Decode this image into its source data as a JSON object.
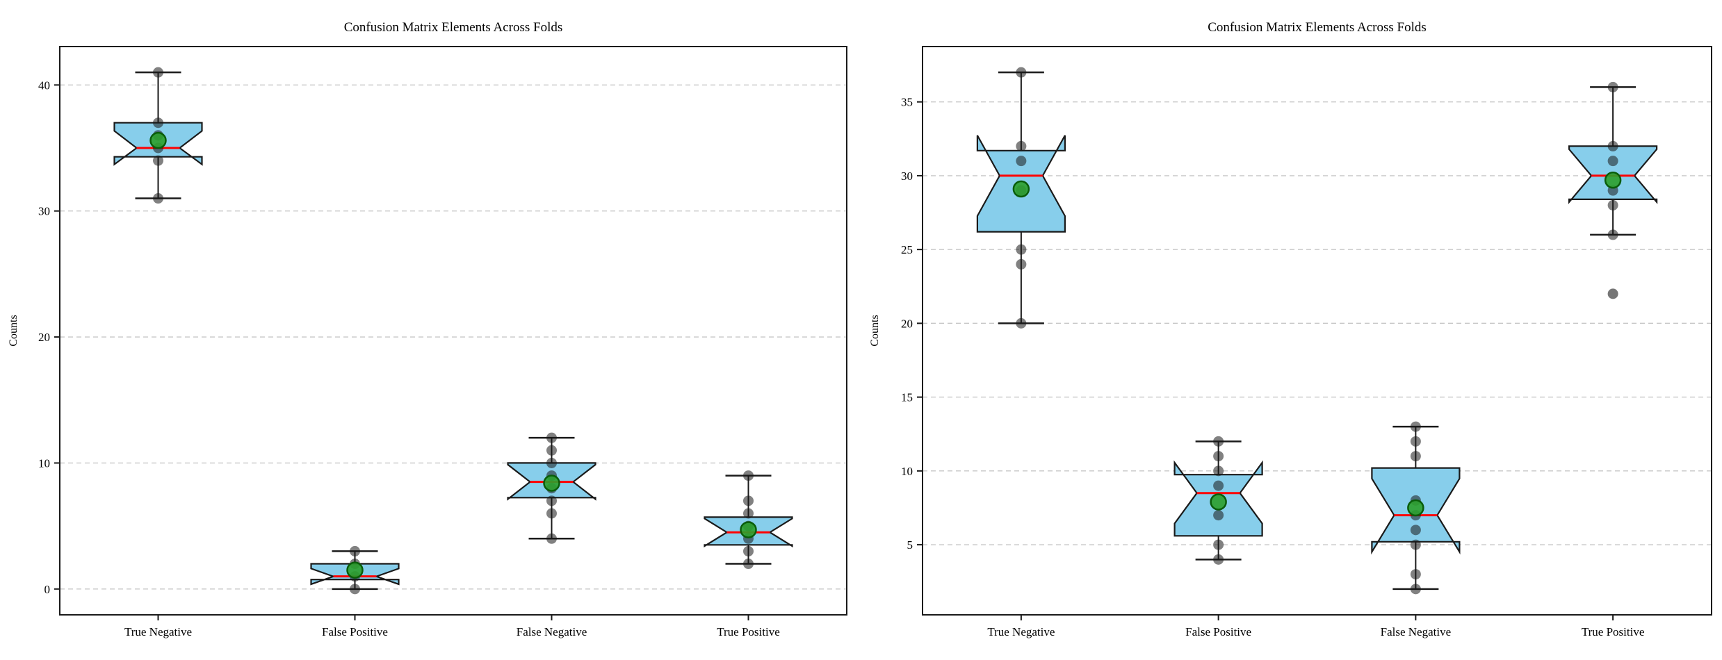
{
  "figure": {
    "background": "#ffffff",
    "panels": [
      "left-boxplot",
      "right-boxplot"
    ]
  },
  "style": {
    "box_fill": "#87CEEB",
    "box_edge": "#1a1a1a",
    "median_color": "#ff0000",
    "mean_fill": "#2ca02c",
    "mean_edge": "#0a5d0a",
    "point_color": "#1a1a1a",
    "grid_color": "#c7c7c7",
    "axis_color": "#1a1a1a"
  },
  "chart_data": [
    {
      "type": "box",
      "panel": "left",
      "title": "Confusion Matrix Elements Across Folds",
      "xlabel": "",
      "ylabel": "Counts",
      "categories": [
        "True Negative",
        "False Positive",
        "False Negative",
        "True Positive"
      ],
      "ylim": [
        -2.05,
        43.05
      ],
      "yticks": [
        0,
        10,
        20,
        30,
        40
      ],
      "grid": "horizontal-dashed",
      "legend": "none",
      "notched": true,
      "boxes": [
        {
          "label": "True Negative",
          "whisker_low": 31,
          "q1": 34.3,
          "median": 35,
          "q3": 37,
          "whisker_high": 41,
          "notch_low": 33.7,
          "notch_high": 36.35,
          "mean": 35.6,
          "points": [
            41,
            37,
            36,
            35,
            34,
            31
          ],
          "outliers": []
        },
        {
          "label": "False Positive",
          "whisker_low": 0,
          "q1": 0.75,
          "median": 1,
          "q3": 2,
          "whisker_high": 3,
          "notch_low": 0.38,
          "notch_high": 1.62,
          "mean": 1.5,
          "points": [
            3,
            2,
            1,
            0
          ],
          "outliers": []
        },
        {
          "label": "False Negative",
          "whisker_low": 4,
          "q1": 7.25,
          "median": 8.5,
          "q3": 10,
          "whisker_high": 12,
          "notch_low": 7.13,
          "notch_high": 9.87,
          "mean": 8.4,
          "points": [
            12,
            11,
            10,
            9,
            8,
            7,
            6,
            4
          ],
          "outliers": []
        },
        {
          "label": "True Positive",
          "whisker_low": 2,
          "q1": 3.5,
          "median": 4.5,
          "q3": 5.7,
          "whisker_high": 9,
          "notch_low": 3.41,
          "notch_high": 5.59,
          "mean": 4.7,
          "points": [
            9,
            7,
            6,
            5,
            4,
            3,
            2
          ],
          "outliers": []
        }
      ]
    },
    {
      "type": "box",
      "panel": "right",
      "title": "Confusion Matrix Elements Across Folds",
      "xlabel": "",
      "ylabel": "Counts",
      "categories": [
        "True Negative",
        "False Positive",
        "False Negative",
        "True Positive"
      ],
      "ylim": [
        0.25,
        38.75
      ],
      "yticks": [
        5,
        10,
        15,
        20,
        25,
        30,
        35
      ],
      "grid": "horizontal-dashed",
      "legend": "none",
      "notched": true,
      "boxes": [
        {
          "label": "True Negative",
          "whisker_low": 20,
          "q1": 26.2,
          "median": 30,
          "q3": 31.7,
          "whisker_high": 37,
          "notch_low": 27.27,
          "notch_high": 32.73,
          "mean": 29.1,
          "points": [
            37,
            32,
            31,
            29,
            25,
            24,
            20
          ],
          "outliers": []
        },
        {
          "label": "False Positive",
          "whisker_low": 4,
          "q1": 5.6,
          "median": 8.5,
          "q3": 9.75,
          "whisker_high": 12,
          "notch_low": 6.44,
          "notch_high": 10.56,
          "mean": 7.9,
          "points": [
            12,
            11,
            10,
            9,
            7,
            5,
            4
          ],
          "outliers": []
        },
        {
          "label": "False Negative",
          "whisker_low": 2,
          "q1": 5.2,
          "median": 7,
          "q3": 10.2,
          "whisker_high": 13,
          "notch_low": 4.52,
          "notch_high": 9.48,
          "mean": 7.5,
          "points": [
            13,
            12,
            11,
            8,
            7,
            6,
            5,
            3,
            2
          ],
          "outliers": []
        },
        {
          "label": "True Positive",
          "whisker_low": 26,
          "q1": 28.4,
          "median": 30,
          "q3": 32,
          "whisker_high": 36,
          "notch_low": 28.21,
          "notch_high": 31.79,
          "mean": 29.7,
          "points": [
            36,
            32,
            31,
            29,
            28,
            26
          ],
          "outliers": [
            22
          ]
        }
      ]
    }
  ]
}
